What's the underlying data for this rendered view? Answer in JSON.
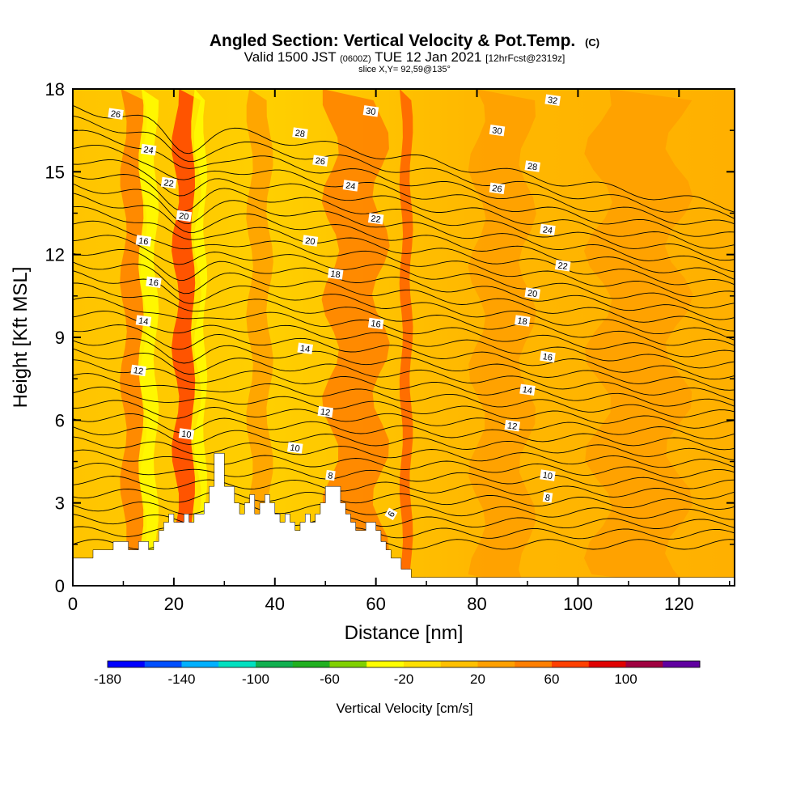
{
  "title": {
    "main": "Angled Section: Vertical Velocity & Pot.Temp.",
    "main_suffix": "(C)",
    "valid_a": "Valid 1500 JST",
    "valid_b": "(0600Z)",
    "valid_c": "TUE 12 Jan 2021",
    "valid_d": "[12hrFcst@2319z]",
    "slice": "slice X,Y= 92,59@135°"
  },
  "chart_data": {
    "type": "heatmap",
    "xlabel": "Distance [nm]",
    "ylabel": "Height [Kft MSL]",
    "xlim": [
      0,
      131
    ],
    "ylim": [
      0,
      18
    ],
    "xticks": [
      0,
      20,
      40,
      60,
      80,
      100,
      120
    ],
    "yticks": [
      0,
      3,
      6,
      9,
      12,
      15,
      18
    ],
    "grid": false,
    "terrain_kft": {
      "x": [
        0,
        4,
        4,
        8,
        8,
        11,
        11,
        13,
        13,
        15,
        15,
        16,
        16,
        17,
        17,
        18,
        18,
        19,
        19,
        20,
        20,
        22,
        22,
        23,
        23,
        24,
        24,
        26,
        26,
        27,
        27,
        28,
        28,
        30,
        30,
        32,
        32,
        33,
        33,
        34,
        34,
        35,
        35,
        36,
        36,
        37,
        37,
        38,
        38,
        39,
        39,
        40,
        40,
        41,
        41,
        42,
        42,
        43,
        43,
        44,
        44,
        45,
        45,
        46,
        46,
        47,
        47,
        48,
        48,
        49,
        49,
        50,
        50,
        53,
        53,
        54,
        54,
        55,
        55,
        56,
        56,
        57,
        57,
        58,
        58,
        60,
        60,
        61,
        61,
        62,
        62,
        63,
        63,
        64,
        64,
        65,
        65,
        66,
        66,
        67,
        67,
        70,
        70,
        131
      ],
      "y": [
        1.0,
        1.0,
        1.3,
        1.3,
        1.6,
        1.6,
        1.3,
        1.3,
        1.6,
        1.6,
        1.3,
        1.3,
        1.6,
        1.6,
        2.0,
        2.0,
        2.3,
        2.3,
        2.6,
        2.6,
        2.3,
        2.3,
        2.6,
        2.6,
        2.3,
        2.3,
        2.6,
        2.6,
        3.0,
        3.0,
        3.6,
        3.6,
        4.8,
        4.8,
        3.6,
        3.6,
        3.0,
        3.0,
        2.6,
        2.6,
        3.0,
        3.0,
        3.3,
        3.3,
        2.6,
        2.6,
        3.0,
        3.0,
        3.3,
        3.3,
        3.0,
        3.0,
        2.6,
        2.6,
        2.3,
        2.3,
        2.6,
        2.6,
        2.3,
        2.3,
        2.0,
        2.0,
        2.3,
        2.3,
        2.6,
        2.6,
        2.3,
        2.3,
        2.6,
        2.6,
        3.0,
        3.0,
        3.6,
        3.6,
        3.0,
        3.0,
        2.6,
        2.6,
        2.3,
        2.3,
        2.0,
        2.0,
        2.0,
        2.0,
        2.3,
        2.3,
        2.0,
        2.0,
        1.6,
        1.6,
        1.3,
        1.3,
        1.0,
        1.0,
        1.0,
        1.0,
        0.6,
        0.6,
        0.6,
        0.6,
        0.3,
        0.3,
        0.3,
        0.3
      ]
    },
    "velocity_bands": [
      {
        "x": 12,
        "half_width": 2,
        "peak": 30,
        "color": "#ff7f00"
      },
      {
        "x": 15,
        "half_width": 1.5,
        "peak": -20,
        "color": "#ffff00"
      },
      {
        "x": 22.5,
        "half_width": 2.2,
        "peak": 50,
        "color": "#ff3f00"
      },
      {
        "x": 25,
        "half_width": 1.2,
        "peak": -20,
        "color": "#ffff00"
      },
      {
        "x": 37,
        "half_width": 2,
        "peak": 20,
        "color": "#ff9f00"
      },
      {
        "x": 56,
        "half_width": 5,
        "peak": 30,
        "color": "#ff7f00"
      },
      {
        "x": 66,
        "half_width": 1,
        "peak": 40,
        "color": "#ff5f00"
      },
      {
        "x": 85,
        "half_width": 5,
        "peak": 20,
        "color": "#ff9f00"
      },
      {
        "x": 112,
        "half_width": 8,
        "peak": 20,
        "color": "#ff9f00"
      }
    ],
    "isentropes_C": {
      "levels": [
        8,
        10,
        12,
        14,
        16,
        18,
        20,
        22,
        24,
        26,
        28,
        30,
        32
      ],
      "labels": [
        {
          "text": "6",
          "x": 63,
          "y": 2.6,
          "rot": -60
        },
        {
          "text": "8",
          "x": 51,
          "y": 4.0
        },
        {
          "text": "8",
          "x": 94,
          "y": 3.2
        },
        {
          "text": "10",
          "x": 22.5,
          "y": 5.5
        },
        {
          "text": "10",
          "x": 44,
          "y": 5.0
        },
        {
          "text": "10",
          "x": 94,
          "y": 4.0
        },
        {
          "text": "12",
          "x": 13,
          "y": 7.8
        },
        {
          "text": "12",
          "x": 50,
          "y": 6.3
        },
        {
          "text": "12",
          "x": 87,
          "y": 5.8
        },
        {
          "text": "14",
          "x": 14,
          "y": 9.6
        },
        {
          "text": "14",
          "x": 46,
          "y": 8.6
        },
        {
          "text": "14",
          "x": 90,
          "y": 7.1
        },
        {
          "text": "16",
          "x": 16,
          "y": 11.0
        },
        {
          "text": "16",
          "x": 60,
          "y": 9.5
        },
        {
          "text": "16",
          "x": 94,
          "y": 8.3
        },
        {
          "text": "16",
          "x": 14,
          "y": 12.5
        },
        {
          "text": "18",
          "x": 52,
          "y": 11.3
        },
        {
          "text": "18",
          "x": 89,
          "y": 9.6
        },
        {
          "text": "20",
          "x": 22,
          "y": 13.4
        },
        {
          "text": "20",
          "x": 47,
          "y": 12.5
        },
        {
          "text": "20",
          "x": 91,
          "y": 10.6
        },
        {
          "text": "22",
          "x": 19,
          "y": 14.6
        },
        {
          "text": "22",
          "x": 60,
          "y": 13.3
        },
        {
          "text": "22",
          "x": 97,
          "y": 11.6
        },
        {
          "text": "24",
          "x": 15,
          "y": 15.8
        },
        {
          "text": "24",
          "x": 55,
          "y": 14.5
        },
        {
          "text": "24",
          "x": 94,
          "y": 12.9
        },
        {
          "text": "26",
          "x": 8.5,
          "y": 17.1
        },
        {
          "text": "26",
          "x": 49,
          "y": 15.4
        },
        {
          "text": "26",
          "x": 84,
          "y": 14.4
        },
        {
          "text": "28",
          "x": 45,
          "y": 16.4
        },
        {
          "text": "28",
          "x": 91,
          "y": 15.2
        },
        {
          "text": "30",
          "x": 59,
          "y": 17.2
        },
        {
          "text": "30",
          "x": 84,
          "y": 16.5
        },
        {
          "text": "32",
          "x": 95,
          "y": 17.6
        }
      ]
    },
    "colorbar": {
      "label": "Vertical Velocity [cm/s]",
      "tick_labels": [
        "-180",
        "-140",
        "-100",
        "-60",
        "-20",
        "20",
        "60",
        "100"
      ],
      "colors": [
        "#0000ff",
        "#0050ff",
        "#00b0ff",
        "#00e0c0",
        "#10b050",
        "#20b020",
        "#80d000",
        "#ffff00",
        "#ffe000",
        "#ffc000",
        "#ffa000",
        "#ff7f00",
        "#ff4000",
        "#e00000",
        "#a00040",
        "#6000a0"
      ]
    }
  }
}
